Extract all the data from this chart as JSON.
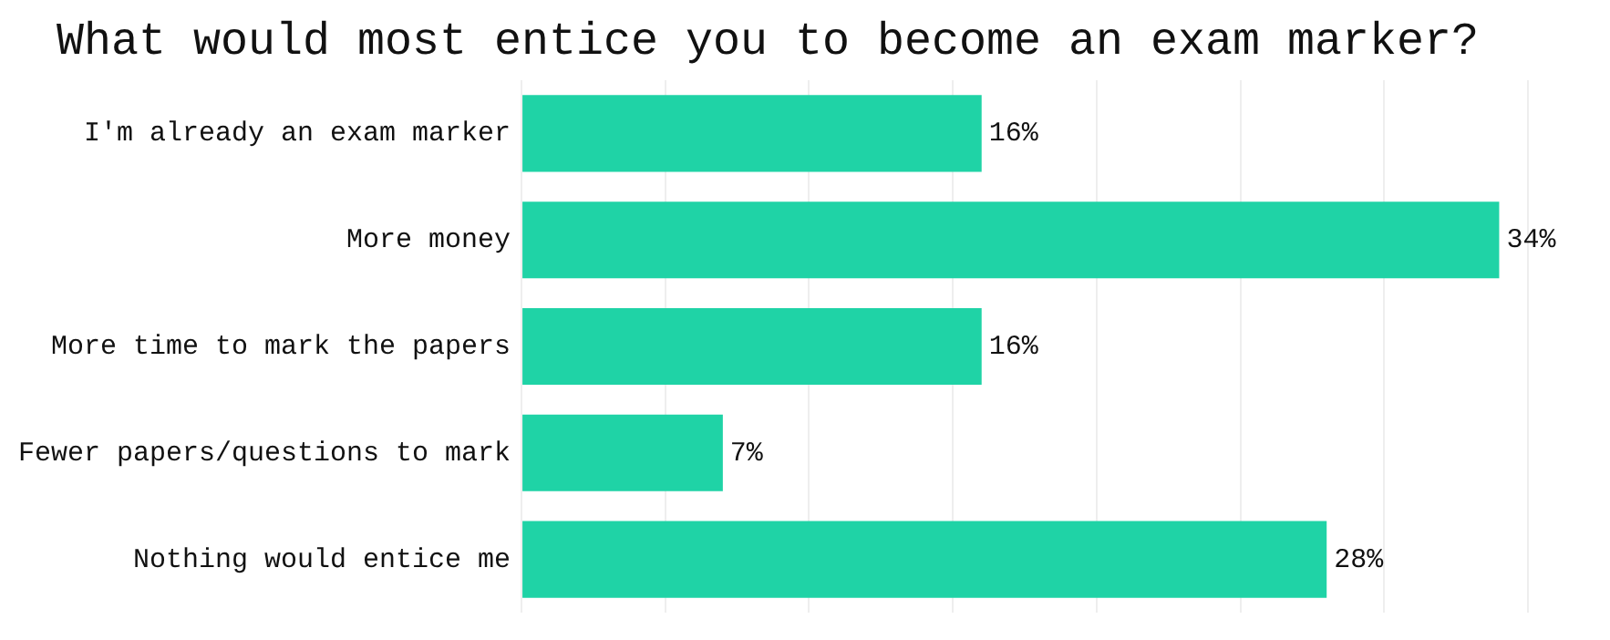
{
  "chart_data": {
    "type": "bar",
    "orientation": "horizontal",
    "title": "What would most entice you to become an exam marker?",
    "categories": [
      "I'm already an exam marker",
      "More money",
      "More time to mark the papers",
      "Fewer papers/questions to mark",
      "Nothing would entice me"
    ],
    "values": [
      16,
      34,
      16,
      7,
      28
    ],
    "value_labels": [
      "16%",
      "34%",
      "16%",
      "7%",
      "28%"
    ],
    "color": "#1fd3a6",
    "xticks": [
      {
        "value": 0,
        "label": null
      },
      {
        "value": 5,
        "label": null
      },
      {
        "value": 10,
        "label": null
      },
      {
        "value": 15,
        "label": null
      },
      {
        "value": 20,
        "label": null
      },
      {
        "value": 25,
        "label": null
      },
      {
        "value": 30,
        "label": null
      },
      {
        "value": 35,
        "label": null
      }
    ],
    "grid": "x",
    "legend": false,
    "tick_labels": "y"
  }
}
